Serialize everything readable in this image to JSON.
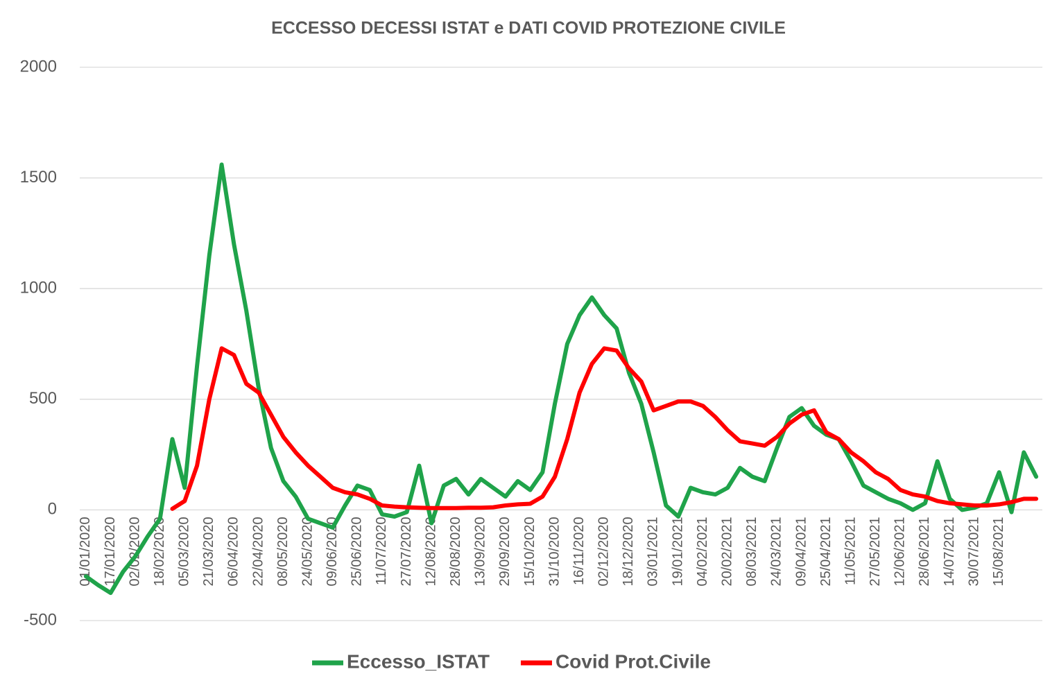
{
  "chart_data": {
    "type": "line",
    "title": "ECCESSO DECESSI ISTAT e DATI COVID PROTEZIONE CIVILE",
    "categories": [
      "01/01/2020",
      null,
      "17/01/2020",
      null,
      "02/02/2020",
      null,
      "18/02/2020",
      null,
      "05/03/2020",
      null,
      "21/03/2020",
      null,
      "06/04/2020",
      null,
      "22/04/2020",
      null,
      "08/05/2020",
      null,
      "24/05/2020",
      null,
      "09/06/2020",
      null,
      "25/06/2020",
      null,
      "11/07/2020",
      null,
      "27/07/2020",
      null,
      "12/08/2020",
      null,
      "28/08/2020",
      null,
      "13/09/2020",
      null,
      "29/09/2020",
      null,
      "15/10/2020",
      null,
      "31/10/2020",
      null,
      "16/11/2020",
      null,
      "02/12/2020",
      null,
      "18/12/2020",
      null,
      "03/01/2021",
      null,
      "19/01/2021",
      null,
      "04/02/2021",
      null,
      "20/02/2021",
      null,
      "08/03/2021",
      null,
      "24/03/2021",
      null,
      "09/04/2021",
      null,
      "25/04/2021",
      null,
      "11/05/2021",
      null,
      "27/05/2021",
      null,
      "12/06/2021",
      null,
      "28/06/2021",
      null,
      "14/07/2021",
      null,
      "30/07/2021",
      null,
      "15/08/2021",
      null,
      null,
      null
    ],
    "series": [
      {
        "name": "Eccesso_ISTAT",
        "color": "#1fa34a",
        "values": [
          -300,
          -340,
          -375,
          -280,
          -210,
          -120,
          -40,
          320,
          100,
          650,
          1150,
          1560,
          1200,
          900,
          550,
          280,
          130,
          60,
          -40,
          -60,
          -80,
          20,
          110,
          90,
          -20,
          -30,
          -10,
          200,
          -60,
          110,
          140,
          70,
          140,
          100,
          60,
          130,
          90,
          170,
          480,
          750,
          880,
          960,
          880,
          820,
          620,
          480,
          260,
          20,
          -30,
          100,
          80,
          70,
          100,
          190,
          150,
          130,
          280,
          420,
          460,
          380,
          340,
          320,
          220,
          110,
          80,
          50,
          30,
          0,
          30,
          220,
          50,
          0,
          10,
          30,
          170,
          -10,
          260,
          150
        ]
      },
      {
        "name": "Covid Prot.Civile",
        "color": "#ff0000",
        "values": [
          null,
          null,
          null,
          null,
          null,
          null,
          null,
          5,
          40,
          200,
          500,
          730,
          700,
          570,
          530,
          430,
          330,
          260,
          200,
          150,
          100,
          80,
          70,
          50,
          20,
          15,
          12,
          10,
          8,
          8,
          8,
          10,
          10,
          12,
          20,
          25,
          28,
          60,
          150,
          320,
          530,
          660,
          730,
          720,
          640,
          580,
          450,
          470,
          490,
          490,
          470,
          420,
          360,
          310,
          300,
          290,
          330,
          390,
          430,
          450,
          350,
          320,
          260,
          220,
          170,
          140,
          90,
          70,
          60,
          40,
          30,
          25,
          20,
          20,
          25,
          35,
          50,
          50
        ]
      }
    ],
    "ylim": [
      -500,
      2000
    ],
    "yticks": [
      -500,
      0,
      500,
      1000,
      1500,
      2000
    ],
    "grid": true,
    "legend": "bottom"
  }
}
